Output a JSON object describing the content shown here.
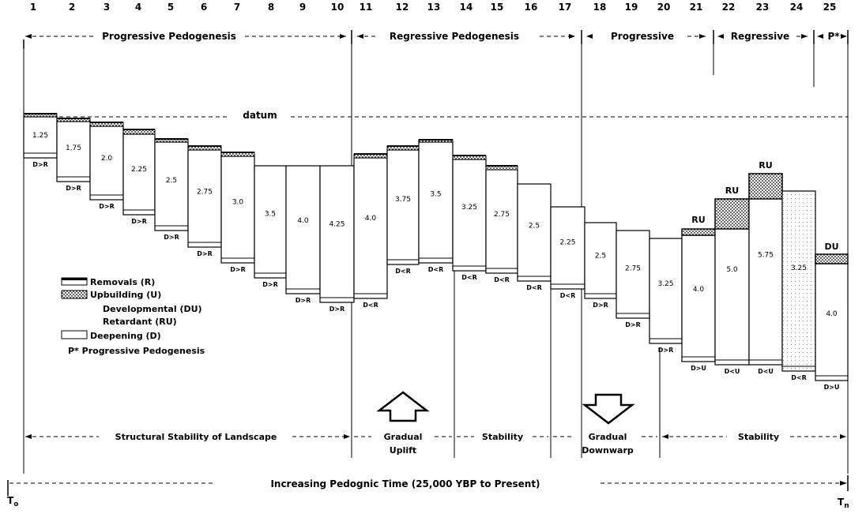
{
  "stage_numbers": [
    "1",
    "2",
    "3",
    "4",
    "5",
    "6",
    "7",
    "8",
    "9",
    "10",
    "11",
    "12",
    "13",
    "14",
    "15",
    "16",
    "17",
    "18",
    "19",
    "20",
    "21",
    "22",
    "23",
    "24",
    "25"
  ],
  "phases": [
    {
      "label": "Progressive Pedogenesis"
    },
    {
      "label": "Regressive Pedogenesis"
    },
    {
      "label": "Progressive"
    },
    {
      "label": "Regressive"
    },
    {
      "label": "P*"
    }
  ],
  "datum_label": "datum",
  "columns": [
    {
      "value": "1.25",
      "relation": "D>R",
      "removal": true
    },
    {
      "value": "1.75",
      "relation": "D>R",
      "removal": true
    },
    {
      "value": "2.0",
      "relation": "D>R",
      "removal": true
    },
    {
      "value": "2.25",
      "relation": "D>R",
      "removal": true
    },
    {
      "value": "2.5",
      "relation": "D>R",
      "removal": true
    },
    {
      "value": "2.75",
      "relation": "D>R",
      "removal": true
    },
    {
      "value": "3.0",
      "relation": "D>R",
      "removal": true
    },
    {
      "value": "3.5",
      "relation": "D>R",
      "removal": false
    },
    {
      "value": "4.0",
      "relation": "D>R",
      "removal": false
    },
    {
      "value": "4.25",
      "relation": "D>R",
      "removal": false
    },
    {
      "value": "4.0",
      "relation": "D<R",
      "removal": true
    },
    {
      "value": "3.75",
      "relation": "D<R",
      "removal": true
    },
    {
      "value": "3.5",
      "relation": "D<R",
      "removal": true
    },
    {
      "value": "3.25",
      "relation": "D<R",
      "removal": true
    },
    {
      "value": "2.75",
      "relation": "D<R",
      "removal": true
    },
    {
      "value": "2.5",
      "relation": "D<R",
      "removal": true
    },
    {
      "value": "2.25",
      "relation": "D<R",
      "removal": false
    },
    {
      "value": "2.5",
      "relation": "D>R",
      "removal": false
    },
    {
      "value": "2.75",
      "relation": "D>R",
      "removal": false
    },
    {
      "value": "3.25",
      "relation": "D>R",
      "removal": false
    },
    {
      "value": "4.0",
      "relation": "D>U",
      "upbuild": "RU"
    },
    {
      "value": "5.0",
      "relation": "D<U",
      "upbuild": "RU"
    },
    {
      "value": "5.75",
      "relation": "D<U",
      "upbuild": "RU"
    },
    {
      "value": "3.25",
      "relation": "D<R",
      "removal": false
    },
    {
      "value": "4.0",
      "relation": "D>U",
      "upbuild": "DU"
    }
  ],
  "legend": {
    "removals": "Removals (R)",
    "upbuilding": "Upbuilding (U)",
    "developmental": "Developmental (DU)",
    "retardant": "Retardant (RU)",
    "deepening": "Deepening (D)",
    "p_star": "P* Progressive Pedogenesis"
  },
  "landscape": {
    "structural": "Structural Stability of Landscape",
    "uplift_1": "Gradual",
    "uplift_2": "Uplift",
    "stability_1": "Stability",
    "downwarp_1": "Gradual",
    "downwarp_2": "Downwarp",
    "stability_2": "Stability"
  },
  "time_axis": {
    "label": "Increasing Pedognic Time (25,000 YBP to Present)",
    "start": "T",
    "start_sub": "o",
    "end": "T",
    "end_sub": "n"
  }
}
